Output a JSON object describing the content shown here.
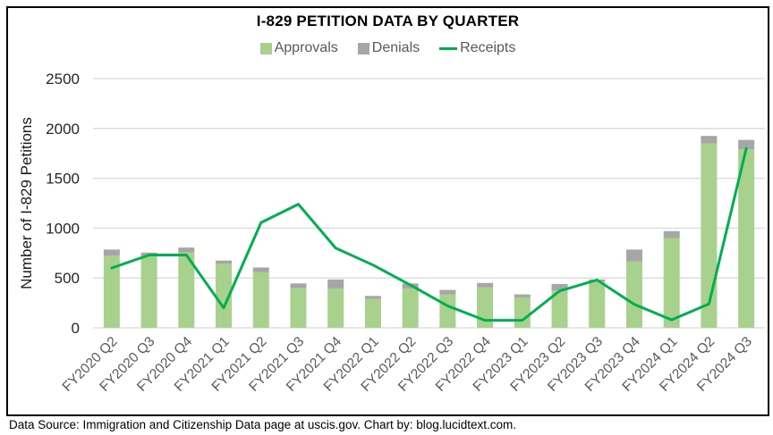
{
  "footer": {
    "text": "Data Source: Immigration and Citizenship Data page at uscis.gov. Chart by: blog.lucidtext.com."
  },
  "colors": {
    "approvals_bar": "#A9D18E",
    "denials_bar": "#A6A6A6",
    "receipts_line": "#00B050",
    "gridline": "#D9D9D9",
    "axis_text": "#262626",
    "category_text": "#595959",
    "legend_text": "#595959",
    "frame_border": "#000000"
  },
  "chart_data": {
    "type": "bar",
    "subtype": "stacked-bars-with-line-overlay",
    "title": "I-829 PETITION DATA BY QUARTER",
    "xlabel": "",
    "ylabel": "Number of I-829 Petitions",
    "ylim": [
      0,
      2500
    ],
    "ytick_step": 500,
    "ytick_labels": [
      "0",
      "500",
      "1000",
      "1500",
      "2000",
      "2500"
    ],
    "grid": true,
    "legend_position": "top",
    "categories": [
      "FY2020 Q2",
      "FY2020 Q3",
      "FY2020 Q4",
      "FY2021 Q1",
      "FY2021 Q2",
      "FY2021 Q3",
      "FY2021 Q4",
      "FY2022 Q1",
      "FY2022 Q2",
      "FY2022 Q3",
      "FY2022 Q4",
      "FY2023 Q1",
      "FY2023 Q2",
      "FY2023 Q3",
      "FY2023 Q4",
      "FY2024 Q1",
      "FY2024 Q2",
      "FY2024 Q3"
    ],
    "series": [
      {
        "name": "Approvals",
        "type": "bar",
        "stack": true,
        "color": "#A9D18E",
        "values": [
          725,
          725,
          755,
          645,
          560,
          400,
          395,
          290,
          395,
          335,
          405,
          305,
          375,
          465,
          665,
          900,
          1850,
          1790
        ]
      },
      {
        "name": "Denials",
        "type": "bar",
        "stack": true,
        "color": "#A6A6A6",
        "values": [
          60,
          30,
          50,
          30,
          45,
          45,
          90,
          30,
          50,
          45,
          45,
          30,
          65,
          20,
          120,
          70,
          75,
          95
        ]
      },
      {
        "name": "Receipts",
        "type": "line",
        "color": "#00B050",
        "values": [
          600,
          730,
          730,
          200,
          1055,
          1240,
          800,
          630,
          430,
          220,
          75,
          75,
          370,
          480,
          235,
          80,
          240,
          1800
        ]
      }
    ]
  }
}
